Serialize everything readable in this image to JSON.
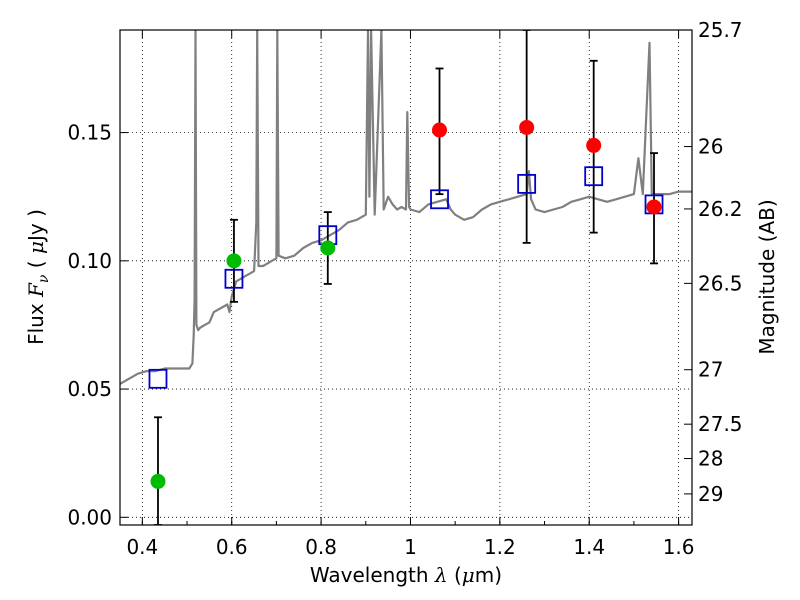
{
  "chart_data": {
    "type": "scatter",
    "xlabel": {
      "prefix": "Wavelength",
      "symbol": "λ",
      "unit_open": "(",
      "unit_mu": "μ",
      "unit_rest": "m)"
    },
    "ylabel": {
      "prefix": "Flux",
      "symbol": "F",
      "subscript": "ν",
      "unit_open": "(",
      "unit_mu": "μ",
      "unit_rest": "Jy )"
    },
    "y2label": "Magnitude (AB)",
    "xlim": [
      0.35,
      1.63
    ],
    "ylim": [
      -0.003,
      0.19
    ],
    "grid": true,
    "x_ticks": [
      {
        "value": 0.4,
        "label": "0.4"
      },
      {
        "value": 0.6,
        "label": "0.6"
      },
      {
        "value": 0.8,
        "label": "0.8"
      },
      {
        "value": 1.0,
        "label": "1"
      },
      {
        "value": 1.2,
        "label": "1.2"
      },
      {
        "value": 1.4,
        "label": "1.4"
      },
      {
        "value": 1.6,
        "label": "1.6"
      }
    ],
    "y_ticks": [
      {
        "value": 0.0,
        "label": "0.00"
      },
      {
        "value": 0.05,
        "label": "0.05"
      },
      {
        "value": 0.1,
        "label": "0.10"
      },
      {
        "value": 0.15,
        "label": "0.15"
      }
    ],
    "mag_ticks": [
      {
        "value": 25.7,
        "label": "25.7"
      },
      {
        "value": 26.0,
        "label": "26"
      },
      {
        "value": 26.2,
        "label": "26.2"
      },
      {
        "value": 26.5,
        "label": "26.5"
      },
      {
        "value": 27.0,
        "label": "27"
      },
      {
        "value": 27.5,
        "label": "27.5"
      },
      {
        "value": 28.0,
        "label": "28"
      },
      {
        "value": 29.0,
        "label": "29"
      }
    ],
    "series": [
      {
        "kind": "line",
        "color": "#808080",
        "points": [
          [
            0.35,
            0.052
          ],
          [
            0.37,
            0.054
          ],
          [
            0.39,
            0.056
          ],
          [
            0.41,
            0.057
          ],
          [
            0.43,
            0.057
          ],
          [
            0.45,
            0.058
          ],
          [
            0.47,
            0.058
          ],
          [
            0.49,
            0.058
          ],
          [
            0.505,
            0.058
          ],
          [
            0.512,
            0.06
          ],
          [
            0.515,
            0.071
          ],
          [
            0.517,
            0.085
          ],
          [
            0.519,
            0.19
          ],
          [
            0.521,
            0.075
          ],
          [
            0.525,
            0.073
          ],
          [
            0.53,
            0.074
          ],
          [
            0.54,
            0.075
          ],
          [
            0.55,
            0.076
          ],
          [
            0.56,
            0.08
          ],
          [
            0.57,
            0.081
          ],
          [
            0.58,
            0.082
          ],
          [
            0.59,
            0.083
          ],
          [
            0.595,
            0.08
          ],
          [
            0.6,
            0.086
          ],
          [
            0.61,
            0.092
          ],
          [
            0.62,
            0.093
          ],
          [
            0.63,
            0.094
          ],
          [
            0.64,
            0.095
          ],
          [
            0.65,
            0.096
          ],
          [
            0.655,
            0.115
          ],
          [
            0.657,
            0.19
          ],
          [
            0.66,
            0.098
          ],
          [
            0.67,
            0.098
          ],
          [
            0.68,
            0.099
          ],
          [
            0.69,
            0.1
          ],
          [
            0.7,
            0.101
          ],
          [
            0.702,
            0.19
          ],
          [
            0.705,
            0.102
          ],
          [
            0.72,
            0.101
          ],
          [
            0.74,
            0.102
          ],
          [
            0.76,
            0.105
          ],
          [
            0.78,
            0.107
          ],
          [
            0.8,
            0.108
          ],
          [
            0.82,
            0.11
          ],
          [
            0.84,
            0.112
          ],
          [
            0.86,
            0.115
          ],
          [
            0.88,
            0.116
          ],
          [
            0.9,
            0.118
          ],
          [
            0.905,
            0.19
          ],
          [
            0.908,
            0.125
          ],
          [
            0.912,
            0.19
          ],
          [
            0.92,
            0.118
          ],
          [
            0.935,
            0.19
          ],
          [
            0.94,
            0.12
          ],
          [
            0.95,
            0.125
          ],
          [
            0.96,
            0.122
          ],
          [
            0.97,
            0.12
          ],
          [
            0.98,
            0.121
          ],
          [
            0.99,
            0.12
          ],
          [
            0.993,
            0.158
          ],
          [
            0.997,
            0.121
          ],
          [
            1.0,
            0.12
          ],
          [
            1.02,
            0.119
          ],
          [
            1.04,
            0.122
          ],
          [
            1.06,
            0.123
          ],
          [
            1.08,
            0.124
          ],
          [
            1.09,
            0.12
          ],
          [
            1.1,
            0.118
          ],
          [
            1.12,
            0.116
          ],
          [
            1.14,
            0.117
          ],
          [
            1.16,
            0.12
          ],
          [
            1.18,
            0.122
          ],
          [
            1.2,
            0.123
          ],
          [
            1.22,
            0.124
          ],
          [
            1.24,
            0.125
          ],
          [
            1.26,
            0.126
          ],
          [
            1.265,
            0.135
          ],
          [
            1.27,
            0.124
          ],
          [
            1.28,
            0.12
          ],
          [
            1.3,
            0.119
          ],
          [
            1.32,
            0.12
          ],
          [
            1.34,
            0.121
          ],
          [
            1.36,
            0.123
          ],
          [
            1.38,
            0.124
          ],
          [
            1.4,
            0.125
          ],
          [
            1.42,
            0.124
          ],
          [
            1.44,
            0.123
          ],
          [
            1.46,
            0.124
          ],
          [
            1.48,
            0.125
          ],
          [
            1.5,
            0.126
          ],
          [
            1.51,
            0.14
          ],
          [
            1.52,
            0.126
          ],
          [
            1.535,
            0.185
          ],
          [
            1.54,
            0.126
          ],
          [
            1.56,
            0.126
          ],
          [
            1.58,
            0.126
          ],
          [
            1.6,
            0.127
          ],
          [
            1.63,
            0.127
          ]
        ]
      },
      {
        "kind": "squares",
        "color": "#0000cc",
        "points": [
          [
            0.435,
            0.054
          ],
          [
            0.605,
            0.093
          ],
          [
            0.815,
            0.11
          ],
          [
            1.065,
            0.124
          ],
          [
            1.26,
            0.13
          ],
          [
            1.41,
            0.133
          ],
          [
            1.545,
            0.122
          ]
        ]
      },
      {
        "kind": "points",
        "color": "#00bb00",
        "points": [
          [
            0.435,
            0.014
          ],
          [
            0.605,
            0.1
          ],
          [
            0.815,
            0.105
          ]
        ]
      },
      {
        "kind": "points",
        "color": "#ff0000",
        "points": [
          [
            1.065,
            0.151
          ],
          [
            1.26,
            0.152
          ],
          [
            1.41,
            0.145
          ],
          [
            1.545,
            0.121
          ]
        ]
      }
    ],
    "error_bars": [
      {
        "x": 0.435,
        "low": -0.003,
        "high": 0.039
      },
      {
        "x": 0.605,
        "low": 0.084,
        "high": 0.116
      },
      {
        "x": 0.815,
        "low": 0.091,
        "high": 0.119
      },
      {
        "x": 1.065,
        "low": 0.126,
        "high": 0.175
      },
      {
        "x": 1.26,
        "low": 0.107,
        "high": 0.19
      },
      {
        "x": 1.41,
        "low": 0.111,
        "high": 0.178
      },
      {
        "x": 1.545,
        "low": 0.099,
        "high": 0.142
      }
    ]
  }
}
